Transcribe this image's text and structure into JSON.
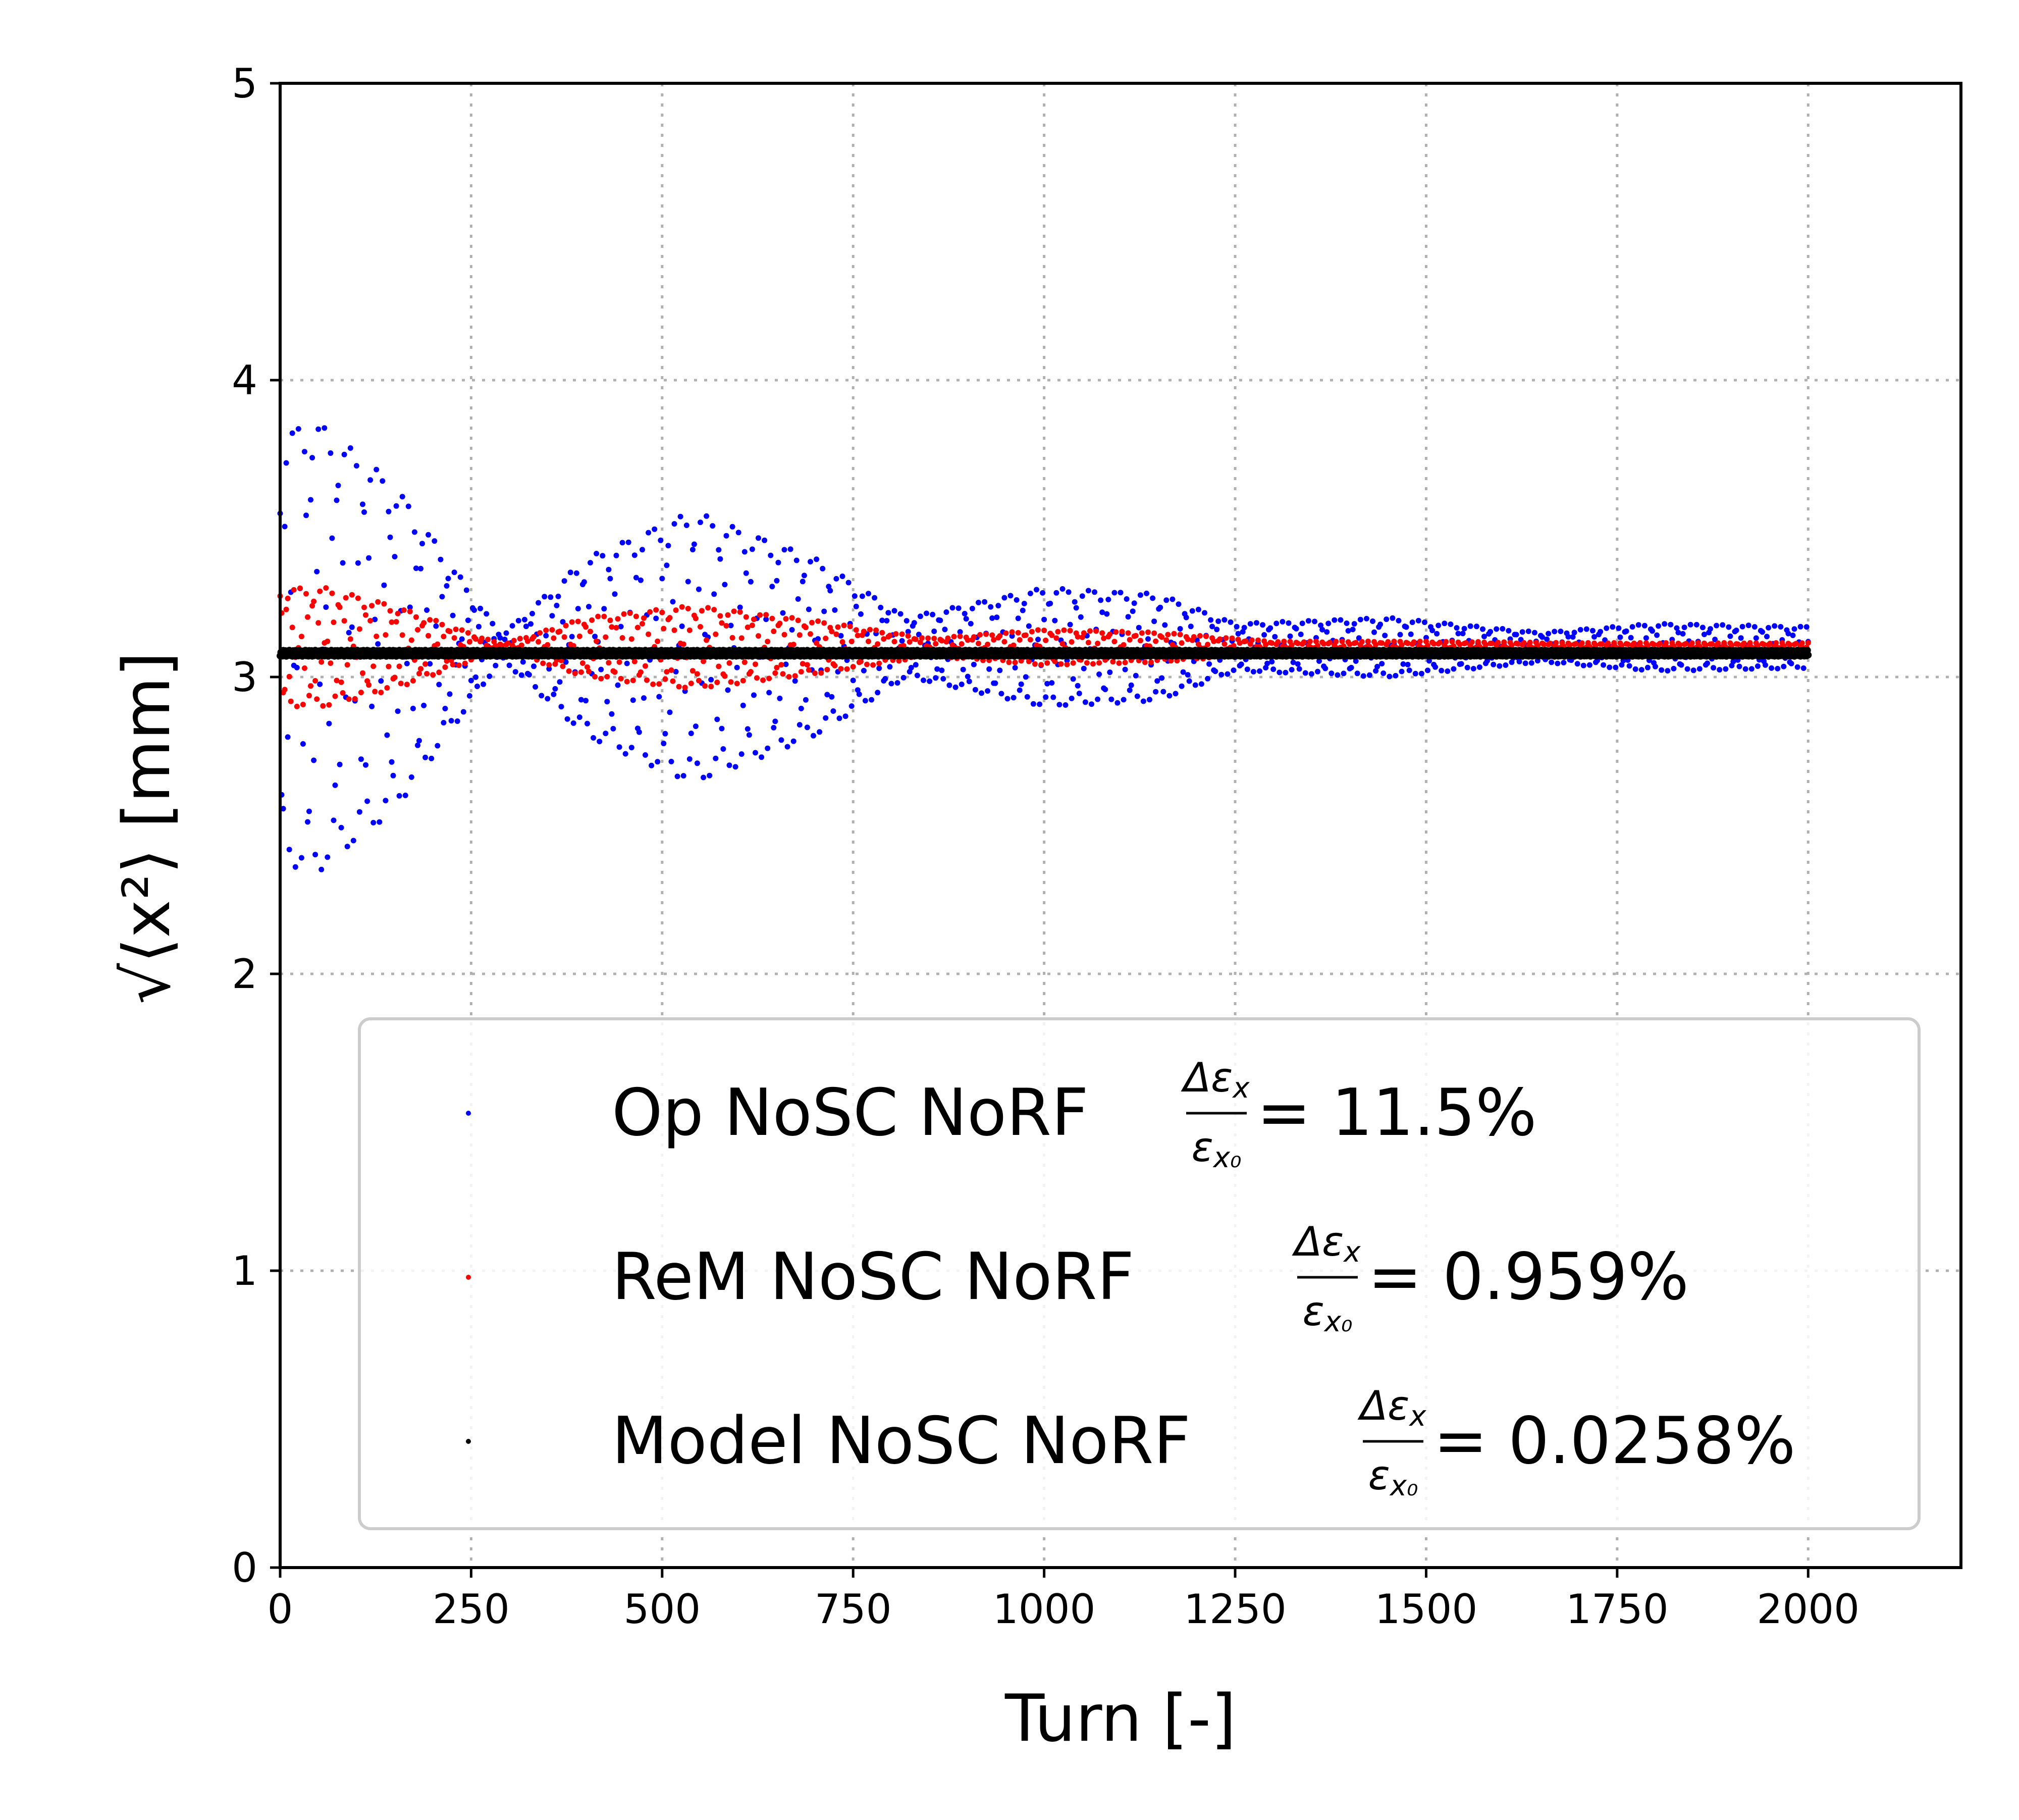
{
  "chart_data": {
    "type": "scatter",
    "xlabel": "Turn [-]",
    "ylabel": "√⟨x²⟩ [mm]",
    "xlim": [
      0,
      2200
    ],
    "ylim": [
      0,
      5
    ],
    "xticks": [
      "0",
      "250",
      "500",
      "750",
      "1000",
      "1250",
      "1500",
      "1750",
      "2000"
    ],
    "yticks": [
      "0",
      "1",
      "2",
      "3",
      "4",
      "5"
    ],
    "grid": true,
    "legend_position": "lower-right",
    "turn_range": [
      0,
      2000
    ],
    "series": [
      {
        "name": "Op NoSC NoRF",
        "color": "#0000ff",
        "emittance_growth": "= 11.5%",
        "mean_mm": 3.1,
        "envelope": {
          "turns": [
            0,
            40,
            150,
            290,
            400,
            540,
            700,
            820,
            1000,
            1150,
            1250,
            1450,
            1650,
            1800,
            2000
          ],
          "amplitude_mm": [
            0.7,
            0.78,
            0.55,
            0.04,
            0.3,
            0.46,
            0.3,
            0.1,
            0.2,
            0.18,
            0.08,
            0.1,
            0.05,
            0.08,
            0.07
          ]
        }
      },
      {
        "name": "ReM NoSC NoRF",
        "color": "#ff0000",
        "emittance_growth": "= 0.959%",
        "mean_mm": 3.1,
        "envelope": {
          "turns": [
            0,
            60,
            150,
            290,
            400,
            540,
            700,
            850,
            1000,
            1150,
            1300,
            1500,
            1700,
            2000
          ],
          "amplitude_mm": [
            0.2,
            0.2,
            0.14,
            0.01,
            0.1,
            0.14,
            0.09,
            0.03,
            0.06,
            0.05,
            0.02,
            0.02,
            0.015,
            0.015
          ]
        }
      },
      {
        "name": "Model NoSC NoRF",
        "color": "#000000",
        "emittance_growth": "= 0.0258%",
        "mean_mm": 3.08,
        "envelope": {
          "turns": [
            0,
            2000
          ],
          "amplitude_mm": [
            0.01,
            0.01
          ]
        }
      }
    ]
  }
}
